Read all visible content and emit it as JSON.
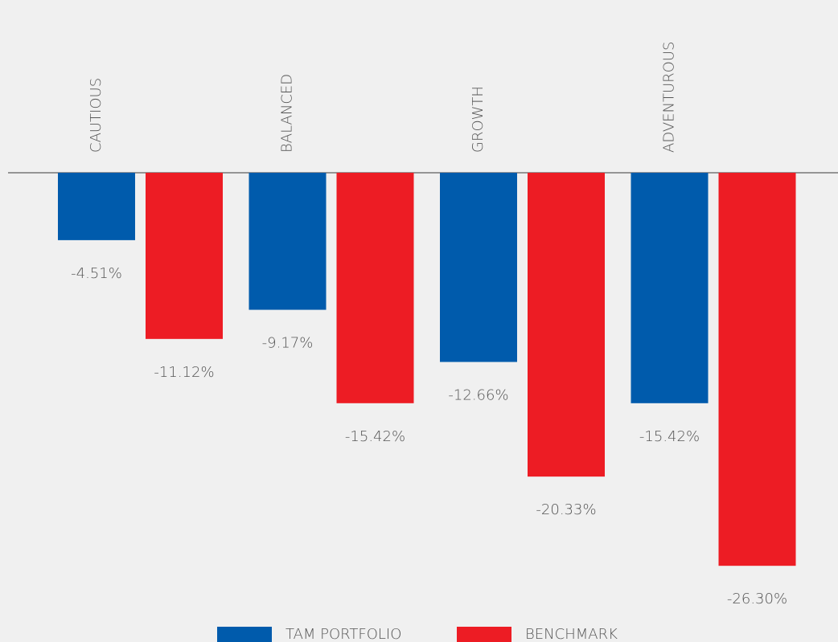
{
  "chart_data": {
    "type": "bar",
    "categories": [
      "CAUTIOUS",
      "BALANCED",
      "GROWTH",
      "ADVENTUROUS"
    ],
    "series": [
      {
        "name": "TAM PORTFOLIO",
        "color": "#005bac",
        "values": [
          -4.51,
          -9.17,
          -12.66,
          -15.42
        ],
        "value_labels": [
          "-4.51%",
          "-9.17%",
          "-12.66%",
          "-15.42%"
        ]
      },
      {
        "name": "BENCHMARK",
        "color": "#ed1c24",
        "values": [
          -11.12,
          -15.42,
          -20.33,
          -26.3
        ],
        "value_labels": [
          "-11.12%",
          "-15.42%",
          "-20.33%",
          "-26.30%"
        ]
      }
    ]
  }
}
